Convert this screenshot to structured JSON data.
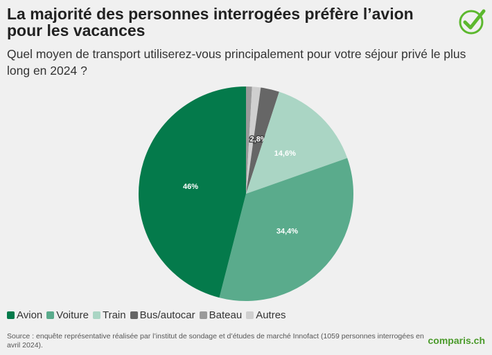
{
  "chart_data": {
    "type": "pie",
    "title": "La majorité des personnes interrogées préfère l’avion pour les vacances",
    "subtitle": "Quel moyen de transport utiliserez-vous principalement pour votre séjour privé le plus long en 2024 ?",
    "categories": [
      "Avion",
      "Voiture",
      "Train",
      "Bus/autocar",
      "Bateau",
      "Autres"
    ],
    "values": [
      46,
      34.4,
      14.6,
      2.8,
      0.9,
      1.3
    ],
    "value_labels": [
      "46%",
      "34,4%",
      "14,6%",
      "2,8%",
      null,
      null
    ],
    "colors": [
      "#047a4b",
      "#5aab8c",
      "#aad5c4",
      "#666666",
      "#9a9a9a",
      "#cfcfcf"
    ],
    "source": "Source : enquête représentative réalisée par l’institut de sondage et d’études de marché Innofact (1059 personnes interrogées en avril 2024).",
    "logo": "comparis.ch"
  }
}
